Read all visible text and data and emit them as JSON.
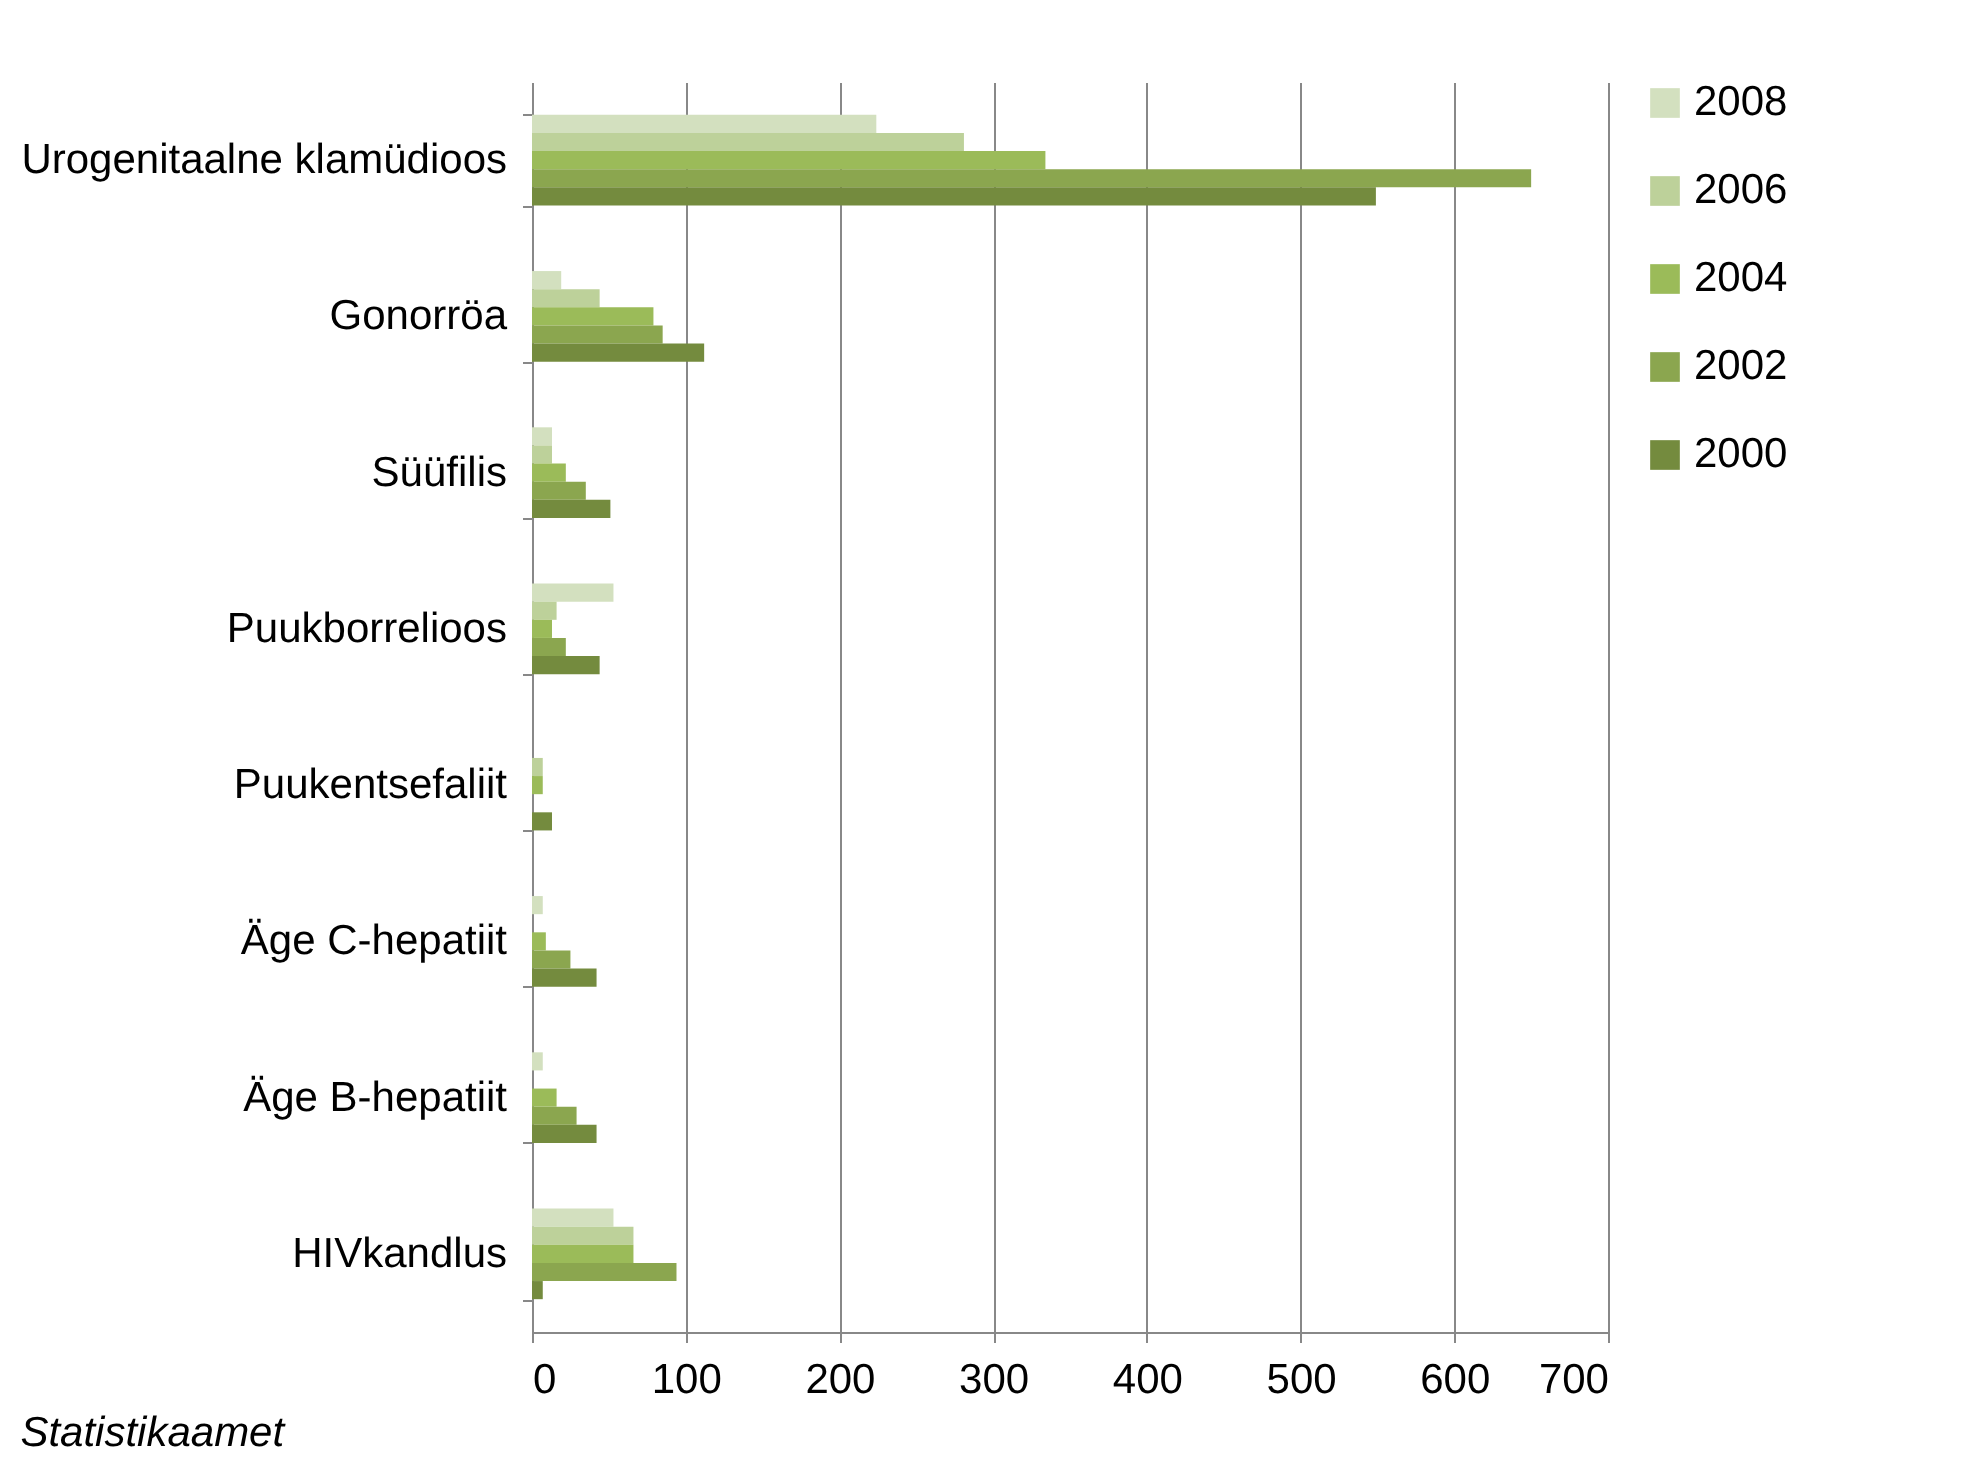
{
  "chart_data": {
    "type": "bar",
    "orientation": "horizontal",
    "categories": [
      "Urogenitaalne klamüdioos",
      "Gonorröa",
      "Süüfilis",
      "Puukborrelioos",
      "Puukentsefaliit",
      "Äge C-hepatiit",
      "Äge B-hepatiit",
      "HIVkandlus"
    ],
    "series": [
      {
        "name": "2008",
        "color": "#d3e0bf",
        "values": [
          224,
          19,
          13,
          53,
          0,
          7,
          7,
          53
        ]
      },
      {
        "name": "2006",
        "color": "#bdd19a",
        "values": [
          281,
          44,
          13,
          16,
          7,
          0,
          0,
          66
        ]
      },
      {
        "name": "2004",
        "color": "#9bbb59",
        "values": [
          334,
          79,
          22,
          13,
          7,
          9,
          16,
          66
        ]
      },
      {
        "name": "2002",
        "color": "#8ba64f",
        "values": [
          650,
          85,
          35,
          22,
          0,
          25,
          29,
          94
        ]
      },
      {
        "name": "2000",
        "color": "#748b3e",
        "values": [
          549,
          112,
          51,
          44,
          13,
          42,
          42,
          7
        ]
      }
    ],
    "xlim": [
      0,
      700
    ],
    "xticks": [
      0,
      100,
      200,
      300,
      400,
      500,
      600,
      700
    ],
    "grid": "x",
    "legend": "right",
    "annotations": [
      "Statistikaamet"
    ]
  }
}
